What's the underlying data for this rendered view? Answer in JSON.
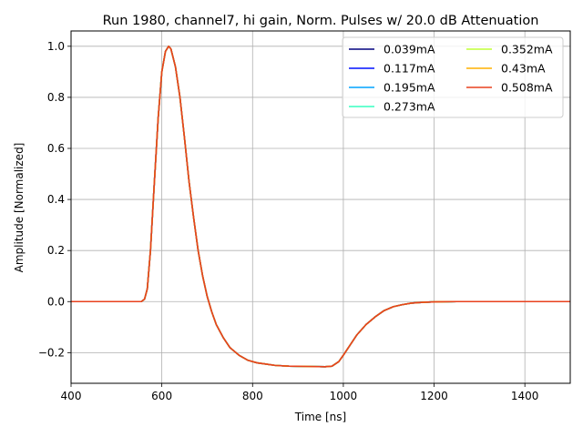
{
  "chart_data": {
    "type": "line",
    "title": "Run 1980, channel7, hi gain, Norm. Pulses w/ 20.0 dB Attenuation",
    "xlabel": "Time [ns]",
    "ylabel": "Amplitude [Normalized]",
    "xlim": [
      400,
      1500
    ],
    "ylim": [
      -0.32,
      1.06
    ],
    "xticks": [
      400,
      600,
      800,
      1000,
      1200,
      1400
    ],
    "yticks": [
      -0.2,
      0.0,
      0.2,
      0.4,
      0.6,
      0.8,
      1.0
    ],
    "xtick_labels": [
      "400",
      "600",
      "800",
      "1000",
      "1200",
      "1400"
    ],
    "ytick_labels": [
      "−0.2",
      "0.0",
      "0.2",
      "0.4",
      "0.6",
      "0.8",
      "1.0"
    ],
    "grid": true,
    "legend_position": "top-right",
    "legend_columns": 2,
    "x": [
      400,
      450,
      500,
      540,
      555,
      562,
      568,
      575,
      583,
      592,
      600,
      608,
      615,
      620,
      630,
      640,
      650,
      660,
      670,
      680,
      690,
      700,
      710,
      720,
      735,
      750,
      770,
      790,
      810,
      830,
      850,
      880,
      920,
      960,
      975,
      990,
      1000,
      1015,
      1030,
      1050,
      1070,
      1090,
      1110,
      1130,
      1150,
      1175,
      1200,
      1250,
      1300,
      1350,
      1400,
      1450,
      1500
    ],
    "series": [
      {
        "name": "0.039mA",
        "color": "#00007f",
        "values": [
          0.0,
          0.0,
          0.0,
          0.0,
          0.0,
          0.01,
          0.05,
          0.2,
          0.45,
          0.72,
          0.9,
          0.98,
          1.0,
          0.99,
          0.92,
          0.8,
          0.64,
          0.47,
          0.33,
          0.2,
          0.1,
          0.02,
          -0.04,
          -0.09,
          -0.14,
          -0.18,
          -0.21,
          -0.23,
          -0.24,
          -0.245,
          -0.25,
          -0.253,
          -0.254,
          -0.255,
          -0.253,
          -0.235,
          -0.21,
          -0.17,
          -0.13,
          -0.09,
          -0.06,
          -0.035,
          -0.02,
          -0.012,
          -0.006,
          -0.003,
          -0.001,
          0.0,
          0.0,
          0.0,
          0.0,
          0.0,
          0.0
        ]
      },
      {
        "name": "0.117mA",
        "color": "#0010ff",
        "values": [
          0.0,
          0.0,
          0.0,
          0.0,
          0.0,
          0.01,
          0.05,
          0.2,
          0.45,
          0.72,
          0.9,
          0.98,
          1.0,
          0.99,
          0.92,
          0.8,
          0.64,
          0.47,
          0.33,
          0.2,
          0.1,
          0.02,
          -0.04,
          -0.09,
          -0.14,
          -0.18,
          -0.21,
          -0.23,
          -0.24,
          -0.245,
          -0.25,
          -0.253,
          -0.254,
          -0.255,
          -0.253,
          -0.235,
          -0.21,
          -0.17,
          -0.13,
          -0.09,
          -0.06,
          -0.035,
          -0.02,
          -0.012,
          -0.006,
          -0.003,
          -0.001,
          0.0,
          0.0,
          0.0,
          0.0,
          0.0,
          0.0
        ]
      },
      {
        "name": "0.195mA",
        "color": "#00a4ff",
        "values": [
          0.0,
          0.0,
          0.0,
          0.0,
          0.0,
          0.01,
          0.05,
          0.2,
          0.45,
          0.72,
          0.9,
          0.98,
          1.0,
          0.99,
          0.92,
          0.8,
          0.64,
          0.47,
          0.33,
          0.2,
          0.1,
          0.02,
          -0.04,
          -0.09,
          -0.14,
          -0.18,
          -0.21,
          -0.23,
          -0.24,
          -0.245,
          -0.25,
          -0.253,
          -0.254,
          -0.255,
          -0.253,
          -0.235,
          -0.21,
          -0.17,
          -0.13,
          -0.09,
          -0.06,
          -0.035,
          -0.02,
          -0.012,
          -0.006,
          -0.003,
          -0.001,
          0.0,
          0.0,
          0.0,
          0.0,
          0.0,
          0.0
        ]
      },
      {
        "name": "0.273mA",
        "color": "#36ffc1",
        "values": [
          0.0,
          0.0,
          0.0,
          0.0,
          0.0,
          0.01,
          0.05,
          0.2,
          0.45,
          0.72,
          0.9,
          0.98,
          1.0,
          0.99,
          0.92,
          0.8,
          0.64,
          0.47,
          0.33,
          0.2,
          0.1,
          0.02,
          -0.04,
          -0.09,
          -0.14,
          -0.18,
          -0.21,
          -0.23,
          -0.24,
          -0.245,
          -0.25,
          -0.253,
          -0.254,
          -0.255,
          -0.253,
          -0.235,
          -0.21,
          -0.17,
          -0.13,
          -0.09,
          -0.06,
          -0.035,
          -0.02,
          -0.012,
          -0.006,
          -0.003,
          -0.001,
          0.0,
          0.0,
          0.0,
          0.0,
          0.0,
          0.0
        ]
      },
      {
        "name": "0.352mA",
        "color": "#c1ff36",
        "values": [
          0.0,
          0.0,
          0.0,
          0.0,
          0.0,
          0.01,
          0.05,
          0.2,
          0.45,
          0.72,
          0.9,
          0.98,
          1.0,
          0.99,
          0.92,
          0.8,
          0.64,
          0.47,
          0.33,
          0.2,
          0.1,
          0.02,
          -0.04,
          -0.09,
          -0.14,
          -0.18,
          -0.21,
          -0.23,
          -0.24,
          -0.245,
          -0.25,
          -0.253,
          -0.254,
          -0.255,
          -0.253,
          -0.235,
          -0.21,
          -0.17,
          -0.13,
          -0.09,
          -0.06,
          -0.035,
          -0.02,
          -0.012,
          -0.006,
          -0.003,
          -0.001,
          0.0,
          0.0,
          0.0,
          0.0,
          0.0,
          0.0
        ]
      },
      {
        "name": "0.43mA",
        "color": "#ffb000",
        "values": [
          0.0,
          0.0,
          0.0,
          0.0,
          0.0,
          0.01,
          0.05,
          0.2,
          0.45,
          0.72,
          0.9,
          0.98,
          1.0,
          0.99,
          0.92,
          0.8,
          0.64,
          0.47,
          0.33,
          0.2,
          0.1,
          0.02,
          -0.04,
          -0.09,
          -0.14,
          -0.18,
          -0.21,
          -0.23,
          -0.24,
          -0.245,
          -0.25,
          -0.253,
          -0.254,
          -0.255,
          -0.253,
          -0.235,
          -0.21,
          -0.17,
          -0.13,
          -0.09,
          -0.06,
          -0.035,
          -0.02,
          -0.012,
          -0.006,
          -0.003,
          -0.001,
          0.0,
          0.0,
          0.0,
          0.0,
          0.0,
          0.0
        ]
      },
      {
        "name": "0.508mA",
        "color": "#e8411e",
        "values": [
          0.0,
          0.0,
          0.0,
          0.0,
          0.0,
          0.01,
          0.05,
          0.2,
          0.45,
          0.72,
          0.9,
          0.98,
          1.0,
          0.99,
          0.92,
          0.8,
          0.64,
          0.47,
          0.33,
          0.2,
          0.1,
          0.02,
          -0.04,
          -0.09,
          -0.14,
          -0.18,
          -0.21,
          -0.23,
          -0.24,
          -0.245,
          -0.25,
          -0.253,
          -0.254,
          -0.255,
          -0.253,
          -0.235,
          -0.21,
          -0.17,
          -0.13,
          -0.09,
          -0.06,
          -0.035,
          -0.02,
          -0.012,
          -0.006,
          -0.003,
          -0.001,
          0.0,
          0.0,
          0.0,
          0.0,
          0.0,
          0.0
        ]
      }
    ]
  }
}
